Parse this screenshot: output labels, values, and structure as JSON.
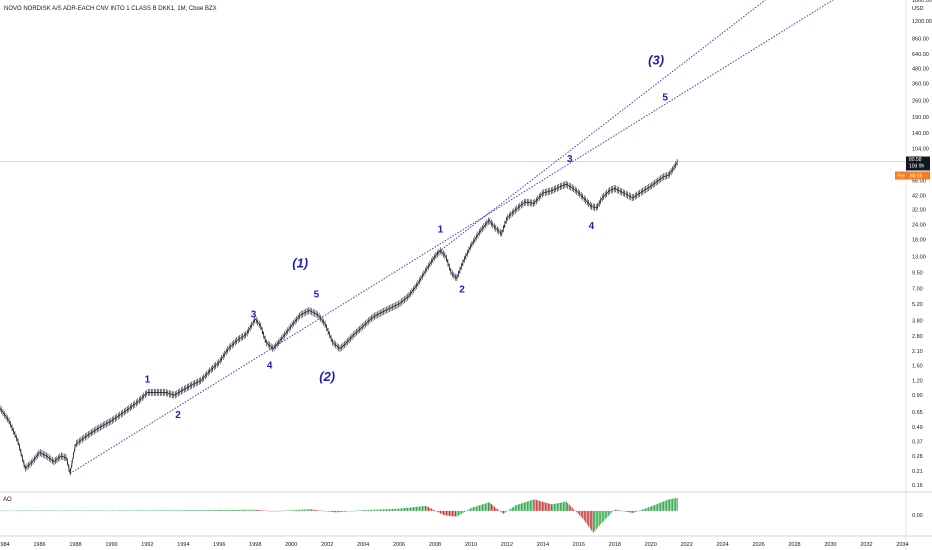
{
  "chart_data": {
    "type": "line",
    "title": "NOVO NORDISK A/S ADR-EACH CNV INTO 1 CLASS B DKK1, 1M, Cboe BZX",
    "currency": "USD",
    "y_scale": "log",
    "ylim": [
      0.14,
      1800
    ],
    "xlim": [
      1983.8,
      2034.2
    ],
    "y_ticks": [
      "1800.00",
      "1200.00",
      "860.00",
      "640.00",
      "480.00",
      "360.00",
      "260.00",
      "190.00",
      "140.00",
      "104.00",
      "76.00",
      "56.00",
      "42.00",
      "32.00",
      "24.00",
      "18.00",
      "13.00",
      "9.50",
      "7.00",
      "5.20",
      "3.80",
      "2.80",
      "2.10",
      "1.60",
      "1.20",
      "0.90",
      "0.65",
      "0.49",
      "0.37",
      "0.28",
      "0.21",
      "0.16"
    ],
    "y_tick_values": [
      1800,
      1200,
      860,
      640,
      480,
      360,
      260,
      190,
      140,
      104,
      76,
      56,
      42,
      32,
      24,
      18,
      13,
      9.5,
      7,
      5.2,
      3.8,
      2.8,
      2.1,
      1.6,
      1.2,
      0.9,
      0.65,
      0.49,
      0.37,
      0.28,
      0.21,
      0.16
    ],
    "x_ticks": [
      "1984",
      "1986",
      "1988",
      "1990",
      "1992",
      "1994",
      "1996",
      "1998",
      "2000",
      "2002",
      "2004",
      "2006",
      "2008",
      "2010",
      "2012",
      "2014",
      "2016",
      "2018",
      "2020",
      "2022",
      "2024",
      "2026",
      "2028",
      "2030",
      "2032",
      "2034"
    ],
    "x_tick_values": [
      1984,
      1986,
      1988,
      1990,
      1992,
      1994,
      1996,
      1998,
      2000,
      2002,
      2004,
      2006,
      2008,
      2010,
      2012,
      2014,
      2016,
      2018,
      2020,
      2022,
      2024,
      2026,
      2028,
      2030,
      2032,
      2034
    ],
    "last_price": "80.58",
    "last_price_value": 80.58,
    "countdown": "10d 9h",
    "pre_label": "Pre",
    "pre_price": "80.55",
    "price_series": {
      "name": "",
      "x": [
        1983.8,
        1984.3,
        1984.8,
        1985.2,
        1985.6,
        1986.0,
        1986.4,
        1986.8,
        1987.2,
        1987.5,
        1987.7,
        1988.0,
        1988.5,
        1989.0,
        1989.5,
        1990.0,
        1990.5,
        1991.0,
        1991.5,
        1992.0,
        1992.5,
        1993.0,
        1993.5,
        1994.0,
        1994.5,
        1995.0,
        1995.5,
        1996.0,
        1996.5,
        1997.0,
        1997.5,
        1998.0,
        1998.3,
        1998.6,
        1999.0,
        1999.5,
        2000.0,
        2000.5,
        2001.0,
        2001.5,
        2001.9,
        2002.3,
        2002.7,
        2003.0,
        2003.5,
        2004.0,
        2004.5,
        2005.0,
        2005.5,
        2006.0,
        2006.5,
        2007.0,
        2007.5,
        2008.0,
        2008.3,
        2008.6,
        2008.9,
        2009.2,
        2009.6,
        2010.0,
        2010.5,
        2011.0,
        2011.3,
        2011.7,
        2012.0,
        2012.5,
        2013.0,
        2013.5,
        2014.0,
        2014.5,
        2015.0,
        2015.3,
        2015.7,
        2016.0,
        2016.4,
        2016.7,
        2017.0,
        2017.3,
        2017.7,
        2018.0,
        2018.5,
        2019.0,
        2019.5,
        2020.0,
        2020.3,
        2020.7,
        2021.0,
        2021.3,
        2021.5
      ],
      "values": [
        0.7,
        0.55,
        0.37,
        0.22,
        0.25,
        0.3,
        0.28,
        0.25,
        0.28,
        0.27,
        0.2,
        0.35,
        0.4,
        0.45,
        0.5,
        0.55,
        0.62,
        0.7,
        0.8,
        0.95,
        0.95,
        0.95,
        0.9,
        1.0,
        1.1,
        1.2,
        1.45,
        1.7,
        2.2,
        2.6,
        2.9,
        3.9,
        3.4,
        2.5,
        2.2,
        2.7,
        3.4,
        4.2,
        4.6,
        4.2,
        3.5,
        2.5,
        2.2,
        2.4,
        2.9,
        3.4,
        4.0,
        4.4,
        4.8,
        5.2,
        6.0,
        7.5,
        10.0,
        13.0,
        14.5,
        13.0,
        9.5,
        8.5,
        12.0,
        16.0,
        21.0,
        26.0,
        23.0,
        20.0,
        27.0,
        32.0,
        37.0,
        36.0,
        44.0,
        46.0,
        50.0,
        52.0,
        48.0,
        44.0,
        38.0,
        34.0,
        33.0,
        40.0,
        46.0,
        48.0,
        44.0,
        40.0,
        45.0,
        50.0,
        54.0,
        60.0,
        62.0,
        72.0,
        80.58
      ]
    },
    "trendlines": [
      {
        "name": "",
        "x": [
          1987.7,
          2034.2
        ],
        "values": [
          0.2,
          4300
        ]
      },
      {
        "name": "",
        "x": [
          2008.1,
          2034.2
        ],
        "values": [
          13.8,
          14500
        ]
      }
    ],
    "wave_labels": [
      {
        "text": "1",
        "x": 1992.0,
        "y": 1.15,
        "size": "small"
      },
      {
        "text": "2",
        "x": 1993.7,
        "y": 0.58,
        "size": "small"
      },
      {
        "text": "3",
        "x": 1997.9,
        "y": 4.0,
        "size": "small"
      },
      {
        "text": "4",
        "x": 1998.8,
        "y": 1.5,
        "size": "small"
      },
      {
        "text": "5",
        "x": 2001.4,
        "y": 5.9,
        "size": "small"
      },
      {
        "text": "(1)",
        "x": 2000.5,
        "y": 10.5,
        "size": "large"
      },
      {
        "text": "(2)",
        "x": 2002.0,
        "y": 1.18,
        "size": "large"
      },
      {
        "text": "1",
        "x": 2008.3,
        "y": 20.5,
        "size": "small"
      },
      {
        "text": "2",
        "x": 2009.5,
        "y": 6.5,
        "size": "small"
      },
      {
        "text": "3",
        "x": 2015.5,
        "y": 80.0,
        "size": "small"
      },
      {
        "text": "4",
        "x": 2016.7,
        "y": 22.0,
        "size": "small"
      },
      {
        "text": "5",
        "x": 2020.8,
        "y": 260.0,
        "size": "small"
      },
      {
        "text": "(3)",
        "x": 2020.3,
        "y": 520.0,
        "size": "large"
      }
    ],
    "indicator": {
      "name": "AO",
      "zero_label": "0.00",
      "x": [
        1983.8,
        1987,
        1990,
        1993,
        1996,
        1998,
        1999,
        2001,
        2002.5,
        2004,
        2006,
        2007.5,
        2008.5,
        2009.2,
        2010,
        2011,
        2011.8,
        2012.5,
        2013.5,
        2014.5,
        2015.3,
        2016.2,
        2016.8,
        2017.3,
        2018,
        2019,
        2020,
        2021,
        2021.5
      ],
      "values": [
        0.3,
        0.4,
        0.6,
        0.8,
        1.2,
        1.6,
        -0.5,
        2.3,
        -2.0,
        1.0,
        3.0,
        7.0,
        -6.0,
        -8.0,
        4.0,
        12.0,
        -4.0,
        8.0,
        16.0,
        9.0,
        13.0,
        -10.0,
        -30.0,
        -16.0,
        2.0,
        -3.0,
        6.0,
        16.0,
        18.0
      ],
      "ylim": [
        -32,
        22
      ],
      "positive_color": "#119c2e",
      "negative_color": "#b71f1f"
    },
    "grid": false,
    "colors": {
      "trendline": "#3d3ddb",
      "wave_label": "#1f1fb3",
      "price_line": "#f4a05a",
      "last_price_bg": "#131722",
      "pre_bg": "#f57c1f"
    }
  }
}
